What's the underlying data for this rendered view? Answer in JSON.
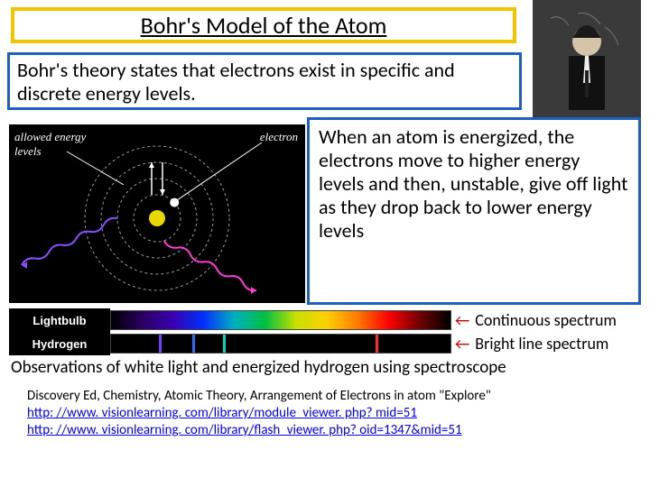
{
  "title": {
    "text": "Bohr's Model of the Atom",
    "border_color": "#f2c400",
    "fontsize": 26
  },
  "theory": {
    "text": "Bohr's theory states that electrons exist in specific and discrete energy levels.",
    "border_color": "#1f5fbf",
    "fontsize": 22
  },
  "explain": {
    "text": "When an atom is energized, the electrons move to higher energy levels and then, unstable, give off light as they drop back to lower energy levels",
    "border_color": "#1f5fbf",
    "fontsize": 22
  },
  "diagram": {
    "bg": "#000000",
    "label_left": "allowed energy levels",
    "label_right": "electron",
    "nucleus_color": "#e8d800",
    "electron_color": "#ffffff",
    "orbit_color": "#9a9a9a",
    "wave_colors": [
      "#8a4fff",
      "#ff3bd4"
    ],
    "arrow_color": "#ffffff",
    "orbits": [
      26,
      44,
      62,
      80
    ],
    "electron_orbit_index": 0
  },
  "spectra": {
    "rows": [
      {
        "label": "Lightbulb",
        "caption": "Continuous spectrum"
      },
      {
        "label": "Hydrogen",
        "caption": "Bright line spectrum"
      }
    ],
    "continuous_gradient": [
      "#000000",
      "#2a0060",
      "#3a00b0",
      "#0030ff",
      "#00b0c0",
      "#00c040",
      "#c8e000",
      "#ffd000",
      "#ff7a00",
      "#ff0000",
      "#700000",
      "#000000"
    ],
    "bright_lines": [
      {
        "pos_pct": 14,
        "color": "#7a3cff"
      },
      {
        "pos_pct": 24,
        "color": "#2a6cff"
      },
      {
        "pos_pct": 33,
        "color": "#00d6c0"
      },
      {
        "pos_pct": 78,
        "color": "#ff2a2a"
      }
    ],
    "arrow_color": "#c00000",
    "label_bg": "#000000",
    "label_fg": "#ffffff"
  },
  "observation": "Observations of white light and energized hydrogen using spectroscope",
  "refs": {
    "line1": "Discovery Ed, Chemistry, Atomic Theory, Arrangement of Electrons in atom \"Explore\"",
    "link1": "http: //www. visionlearning. com/library/module_viewer. php? mid=51",
    "link2": "http: //www. visionlearning. com/library/flash_viewer. php? oid=1347&mid=51"
  },
  "portrait": {
    "bg": "#2b2b2b"
  }
}
